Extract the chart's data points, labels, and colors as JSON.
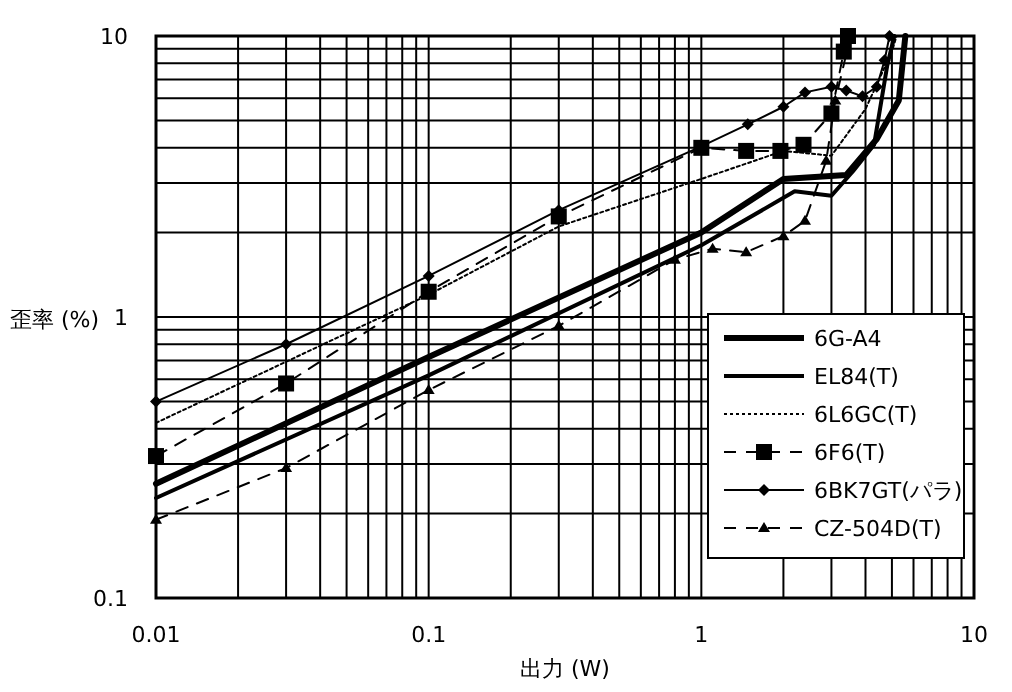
{
  "chart_data": {
    "type": "line",
    "xlabel": "出力 (W)",
    "ylabel": "歪率 (%)",
    "log": "xy",
    "grid": true,
    "legend": "bottom right",
    "xlim": [
      0.01,
      10
    ],
    "ylim": [
      0.1,
      10
    ],
    "xticks": [
      0.01,
      {
        "value": 0.02,
        "label": null
      },
      {
        "value": 0.03,
        "label": null
      },
      {
        "value": 0.04,
        "label": null
      },
      {
        "value": 0.05,
        "label": null
      },
      {
        "value": 0.06,
        "label": null
      },
      {
        "value": 0.07,
        "label": null
      },
      {
        "value": 0.08,
        "label": null
      },
      {
        "value": 0.09,
        "label": null
      },
      0.1,
      {
        "value": 0.2,
        "label": null
      },
      {
        "value": 0.3,
        "label": null
      },
      {
        "value": 0.4,
        "label": null
      },
      {
        "value": 0.5,
        "label": null
      },
      {
        "value": 0.6,
        "label": null
      },
      {
        "value": 0.7,
        "label": null
      },
      {
        "value": 0.8,
        "label": null
      },
      {
        "value": 0.9,
        "label": null
      },
      1,
      {
        "value": 2,
        "label": null
      },
      {
        "value": 3,
        "label": null
      },
      {
        "value": 4,
        "label": null
      },
      {
        "value": 5,
        "label": null
      },
      {
        "value": 6,
        "label": null
      },
      {
        "value": 7,
        "label": null
      },
      {
        "value": 8,
        "label": null
      },
      {
        "value": 9,
        "label": null
      },
      10
    ],
    "yticks": [
      0.1,
      {
        "value": 0.2,
        "label": null
      },
      {
        "value": 0.3,
        "label": null
      },
      {
        "value": 0.4,
        "label": null
      },
      {
        "value": 0.5,
        "label": null
      },
      {
        "value": 0.6,
        "label": null
      },
      {
        "value": 0.7,
        "label": null
      },
      {
        "value": 0.8,
        "label": null
      },
      {
        "value": 0.9,
        "label": null
      },
      1,
      {
        "value": 2,
        "label": null
      },
      {
        "value": 3,
        "label": null
      },
      {
        "value": 4,
        "label": null
      },
      {
        "value": 5,
        "label": null
      },
      {
        "value": 6,
        "label": null
      },
      {
        "value": 7,
        "label": null
      },
      {
        "value": 8,
        "label": null
      },
      {
        "value": 9,
        "label": null
      },
      10
    ],
    "series": [
      {
        "name": "6G-A4",
        "color": "#000000",
        "line_style": "solid",
        "marker": "none",
        "x": [
          0.01,
          0.1,
          1,
          2,
          3.4,
          4.4,
          5.3,
          5.6
        ],
        "values": [
          0.255,
          0.72,
          2.0,
          3.1,
          3.2,
          4.3,
          5.9,
          10
        ]
      },
      {
        "name": "EL84(T)",
        "color": "#000000",
        "line_style": "solid",
        "marker": "none",
        "x": [
          0.01,
          0.1,
          1,
          2.2,
          3.0,
          3.6,
          4.3,
          4.8,
          5.1
        ],
        "values": [
          0.227,
          0.62,
          1.8,
          2.8,
          2.7,
          3.3,
          4.1,
          7.8,
          10
        ]
      },
      {
        "name": "6L6GC(T)",
        "color": "#000000",
        "line_style": "dotted",
        "marker": "none",
        "x": [
          0.01,
          0.1,
          0.3,
          1,
          2,
          3,
          4,
          5,
          5.2
        ],
        "values": [
          0.42,
          1.2,
          2.1,
          3.1,
          3.9,
          3.75,
          5.5,
          8.8,
          10
        ]
      },
      {
        "name": "6F6(T)",
        "color": "#000000",
        "line_style": "dashed",
        "marker": "square",
        "x": [
          0.01,
          0.03,
          0.1,
          0.3,
          1,
          1.46,
          1.95,
          2.37,
          3.0,
          3.33,
          3.45
        ],
        "values": [
          0.32,
          0.58,
          1.23,
          2.28,
          4.0,
          3.9,
          3.9,
          4.1,
          5.3,
          8.8,
          10
        ]
      },
      {
        "name": "6BK7GT(パラ)",
        "color": "#000000",
        "line_style": "solid",
        "marker": "diamond",
        "x": [
          0.01,
          0.03,
          0.1,
          0.3,
          1,
          1.48,
          2.0,
          2.4,
          3.0,
          3.4,
          3.9,
          4.4,
          4.7,
          4.9
        ],
        "values": [
          0.5,
          0.8,
          1.4,
          2.4,
          4.05,
          4.85,
          5.6,
          6.3,
          6.6,
          6.4,
          6.1,
          6.6,
          8.2,
          10
        ]
      },
      {
        "name": "CZ-504D(T)",
        "color": "#000000",
        "line_style": "dashed",
        "marker": "triangle",
        "x": [
          0.01,
          0.03,
          0.1,
          0.3,
          0.8,
          1.1,
          1.46,
          2.0,
          2.4,
          2.87,
          3.1,
          3.5
        ],
        "values": [
          0.19,
          0.29,
          0.55,
          0.93,
          1.6,
          1.75,
          1.7,
          1.94,
          2.2,
          3.6,
          5.9,
          9.7
        ]
      }
    ]
  }
}
